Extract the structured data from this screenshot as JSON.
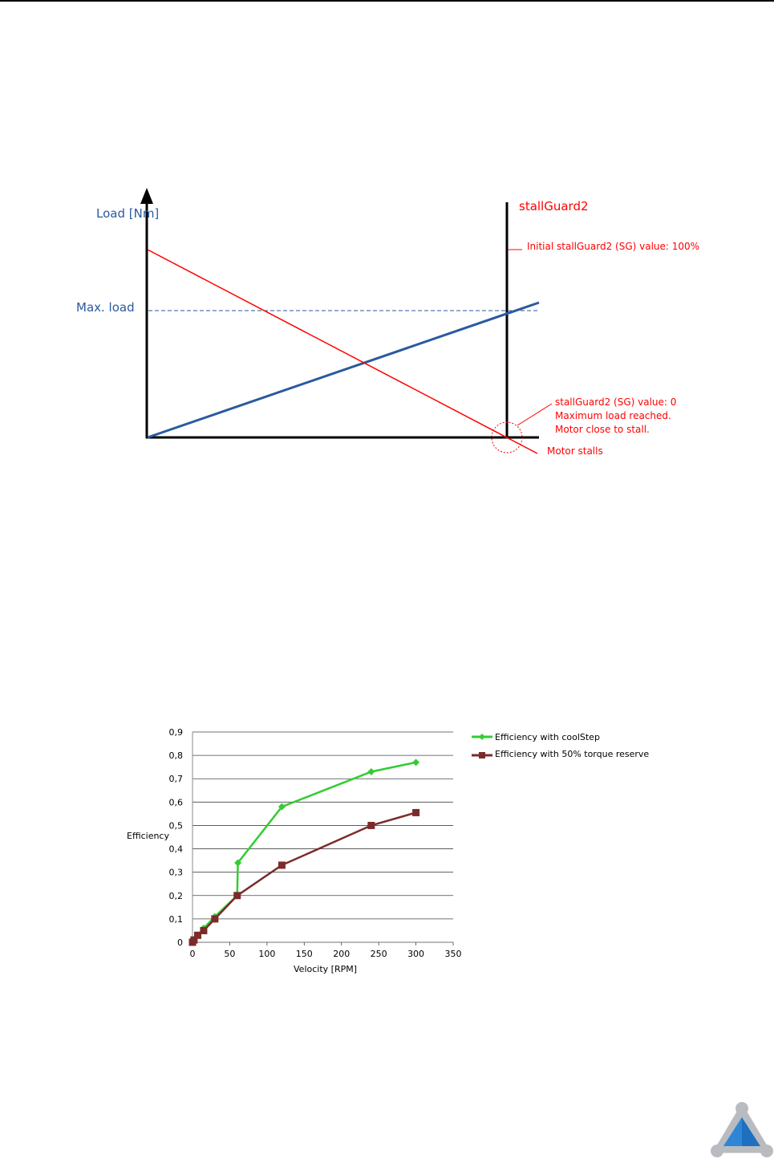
{
  "chart_data": [
    {
      "type": "line",
      "title": "",
      "ylabel": "Load [Nm]",
      "xlabel": "",
      "max_load_label": "Max. load",
      "sg_axis_label": "stallGuard2",
      "annotations": {
        "initial": "Initial stallGuard2 (SG) value: 100%",
        "zero_line1": "stallGuard2 (SG) value: 0",
        "zero_line2": "Maximum load reached.",
        "zero_line3": "Motor close to stall.",
        "stall": "Motor stalls"
      },
      "colors": {
        "load": "#2a5aa0",
        "stallguard": "#ff0000",
        "axis": "#000000"
      }
    },
    {
      "type": "line",
      "title": "",
      "xlabel": "Velocity [RPM]",
      "ylabel": "Efficiency",
      "xlim": [
        0,
        350
      ],
      "ylim": [
        0,
        0.9
      ],
      "x_ticks": [
        "0",
        "50",
        "100",
        "150",
        "200",
        "250",
        "300",
        "350"
      ],
      "y_ticks": [
        "0",
        "0,1",
        "0,2",
        "0,3",
        "0,4",
        "0,5",
        "0,6",
        "0,7",
        "0,8",
        "0,9"
      ],
      "grid": true,
      "legend_position": "right",
      "series": [
        {
          "name": "Efficiency with coolStep",
          "color": "#33cc33",
          "marker": "diamond",
          "x": [
            0,
            2,
            7,
            15,
            30,
            60,
            61,
            120,
            240,
            300
          ],
          "y": [
            0,
            0.01,
            0.03,
            0.06,
            0.11,
            0.2,
            0.34,
            0.58,
            0.73,
            0.77
          ]
        },
        {
          "name": "Efficiency with 50% torque reserve",
          "color": "#7b2b2b",
          "marker": "square",
          "x": [
            0,
            2,
            7,
            15,
            30,
            60,
            120,
            240,
            300
          ],
          "y": [
            0,
            0.01,
            0.03,
            0.05,
            0.1,
            0.2,
            0.33,
            0.5,
            0.555
          ]
        }
      ]
    }
  ],
  "logo_color": "#1e6fbf"
}
